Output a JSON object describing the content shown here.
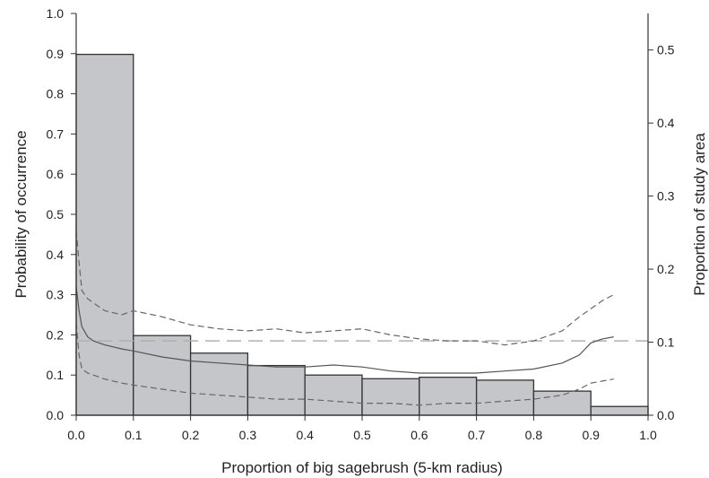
{
  "chart_data": {
    "type": "bar",
    "xlabel": "Proportion of big sagebrush (5-km radius)",
    "ylabel_left": "Probability of occurrence",
    "ylabel_right": "Proportion of study area",
    "xlim": [
      0.0,
      1.0
    ],
    "ylim_left": [
      0.0,
      1.0
    ],
    "ylim_right": [
      0.0,
      0.55
    ],
    "x_ticks": [
      "0.0",
      "0.1",
      "0.2",
      "0.3",
      "0.4",
      "0.5",
      "0.6",
      "0.7",
      "0.8",
      "0.9",
      "1.0"
    ],
    "y_left_ticks": [
      "0.0",
      "0.1",
      "0.2",
      "0.3",
      "0.4",
      "0.5",
      "0.6",
      "0.7",
      "0.8",
      "0.9",
      "1.0"
    ],
    "y_right_ticks": [
      "0.0",
      "0.1",
      "0.2",
      "0.3",
      "0.4",
      "0.5"
    ],
    "grid": false,
    "legend": "none",
    "colors": {
      "bar_fill": "#c4c6ca",
      "bar_stroke": "#333333",
      "line": "#555555",
      "ci_line": "#666666",
      "reference_line": "#b0b0b0"
    },
    "histogram": {
      "axis": "right",
      "bin_edges": [
        0.0,
        0.1,
        0.2,
        0.3,
        0.4,
        0.5,
        0.6,
        0.7,
        0.8,
        0.9,
        1.0
      ],
      "values": [
        0.494,
        0.109,
        0.085,
        0.068,
        0.055,
        0.05,
        0.052,
        0.048,
        0.033,
        0.012
      ]
    },
    "series": [
      {
        "role": "prediction",
        "style": "solid",
        "axis": "left",
        "x": [
          0.0,
          0.005,
          0.01,
          0.02,
          0.03,
          0.05,
          0.08,
          0.1,
          0.15,
          0.2,
          0.25,
          0.3,
          0.35,
          0.4,
          0.45,
          0.5,
          0.55,
          0.6,
          0.65,
          0.7,
          0.75,
          0.8,
          0.85,
          0.88,
          0.9,
          0.92,
          0.94
        ],
        "y": [
          0.32,
          0.26,
          0.22,
          0.195,
          0.185,
          0.175,
          0.165,
          0.16,
          0.145,
          0.135,
          0.13,
          0.125,
          0.12,
          0.12,
          0.125,
          0.12,
          0.11,
          0.105,
          0.105,
          0.105,
          0.11,
          0.115,
          0.13,
          0.15,
          0.18,
          0.19,
          0.195
        ]
      },
      {
        "role": "upper-ci",
        "style": "dashed",
        "axis": "left",
        "x": [
          0.0,
          0.005,
          0.01,
          0.02,
          0.03,
          0.05,
          0.08,
          0.1,
          0.15,
          0.2,
          0.25,
          0.3,
          0.35,
          0.4,
          0.45,
          0.5,
          0.55,
          0.6,
          0.65,
          0.7,
          0.75,
          0.8,
          0.85,
          0.88,
          0.9,
          0.92,
          0.94
        ],
        "y": [
          0.46,
          0.38,
          0.31,
          0.29,
          0.28,
          0.26,
          0.25,
          0.26,
          0.245,
          0.225,
          0.215,
          0.21,
          0.215,
          0.205,
          0.21,
          0.215,
          0.2,
          0.19,
          0.185,
          0.185,
          0.175,
          0.185,
          0.21,
          0.245,
          0.265,
          0.285,
          0.3
        ]
      },
      {
        "role": "lower-ci",
        "style": "dashed",
        "axis": "left",
        "x": [
          0.0,
          0.005,
          0.01,
          0.02,
          0.03,
          0.05,
          0.08,
          0.1,
          0.15,
          0.2,
          0.25,
          0.3,
          0.35,
          0.4,
          0.45,
          0.5,
          0.55,
          0.6,
          0.65,
          0.7,
          0.75,
          0.8,
          0.85,
          0.88,
          0.9,
          0.92,
          0.94
        ],
        "y": [
          0.23,
          0.15,
          0.115,
          0.105,
          0.1,
          0.09,
          0.08,
          0.075,
          0.065,
          0.055,
          0.05,
          0.045,
          0.04,
          0.04,
          0.035,
          0.03,
          0.03,
          0.025,
          0.03,
          0.03,
          0.035,
          0.04,
          0.05,
          0.065,
          0.08,
          0.085,
          0.09
        ]
      }
    ],
    "reference_line": {
      "axis": "left",
      "y": 0.185,
      "style": "dashed"
    }
  }
}
